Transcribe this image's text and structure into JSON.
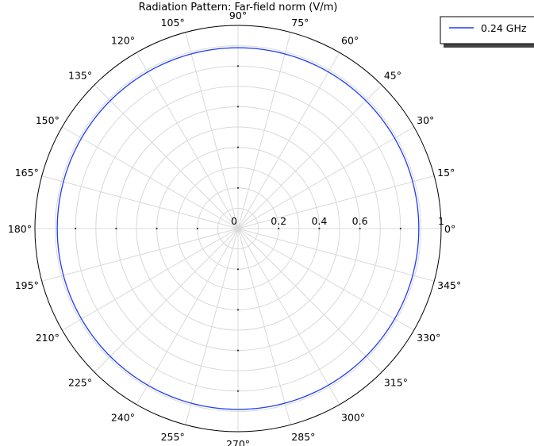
{
  "chart_data": {
    "type": "polar-line",
    "title": "Radiation Pattern: Far-field norm (V/m)",
    "angle_unit": "deg",
    "angle_ticks": [
      0,
      15,
      30,
      45,
      60,
      75,
      90,
      105,
      120,
      135,
      150,
      165,
      180,
      195,
      210,
      225,
      240,
      255,
      270,
      285,
      300,
      315,
      330,
      345
    ],
    "angle_tick_labels": [
      "0°",
      "15°",
      "30°",
      "45°",
      "60°",
      "75°",
      "90°",
      "105°",
      "120°",
      "135°",
      "150°",
      "165°",
      "180°",
      "195°",
      "210°",
      "225°",
      "240°",
      "255°",
      "270°",
      "285°",
      "300°",
      "315°",
      "330°",
      "345°"
    ],
    "radial_ticks": [
      0,
      0.2,
      0.4,
      0.6,
      1
    ],
    "radial_tick_labels": [
      "0",
      "0.2",
      "0.4",
      "0.6",
      "1"
    ],
    "rlim": [
      0,
      1
    ],
    "grid": true,
    "legend_position": "top-right",
    "series": [
      {
        "name": "0.24 GHz",
        "color": "#1f3cf5",
        "theta": [
          0,
          90,
          180,
          270,
          360
        ],
        "r": [
          0.89,
          0.89,
          0.89,
          0.89,
          0.89
        ]
      }
    ]
  },
  "colors": {
    "series": "#1f3cf5",
    "grid": "#d9d9d9",
    "axis": "#000000"
  }
}
